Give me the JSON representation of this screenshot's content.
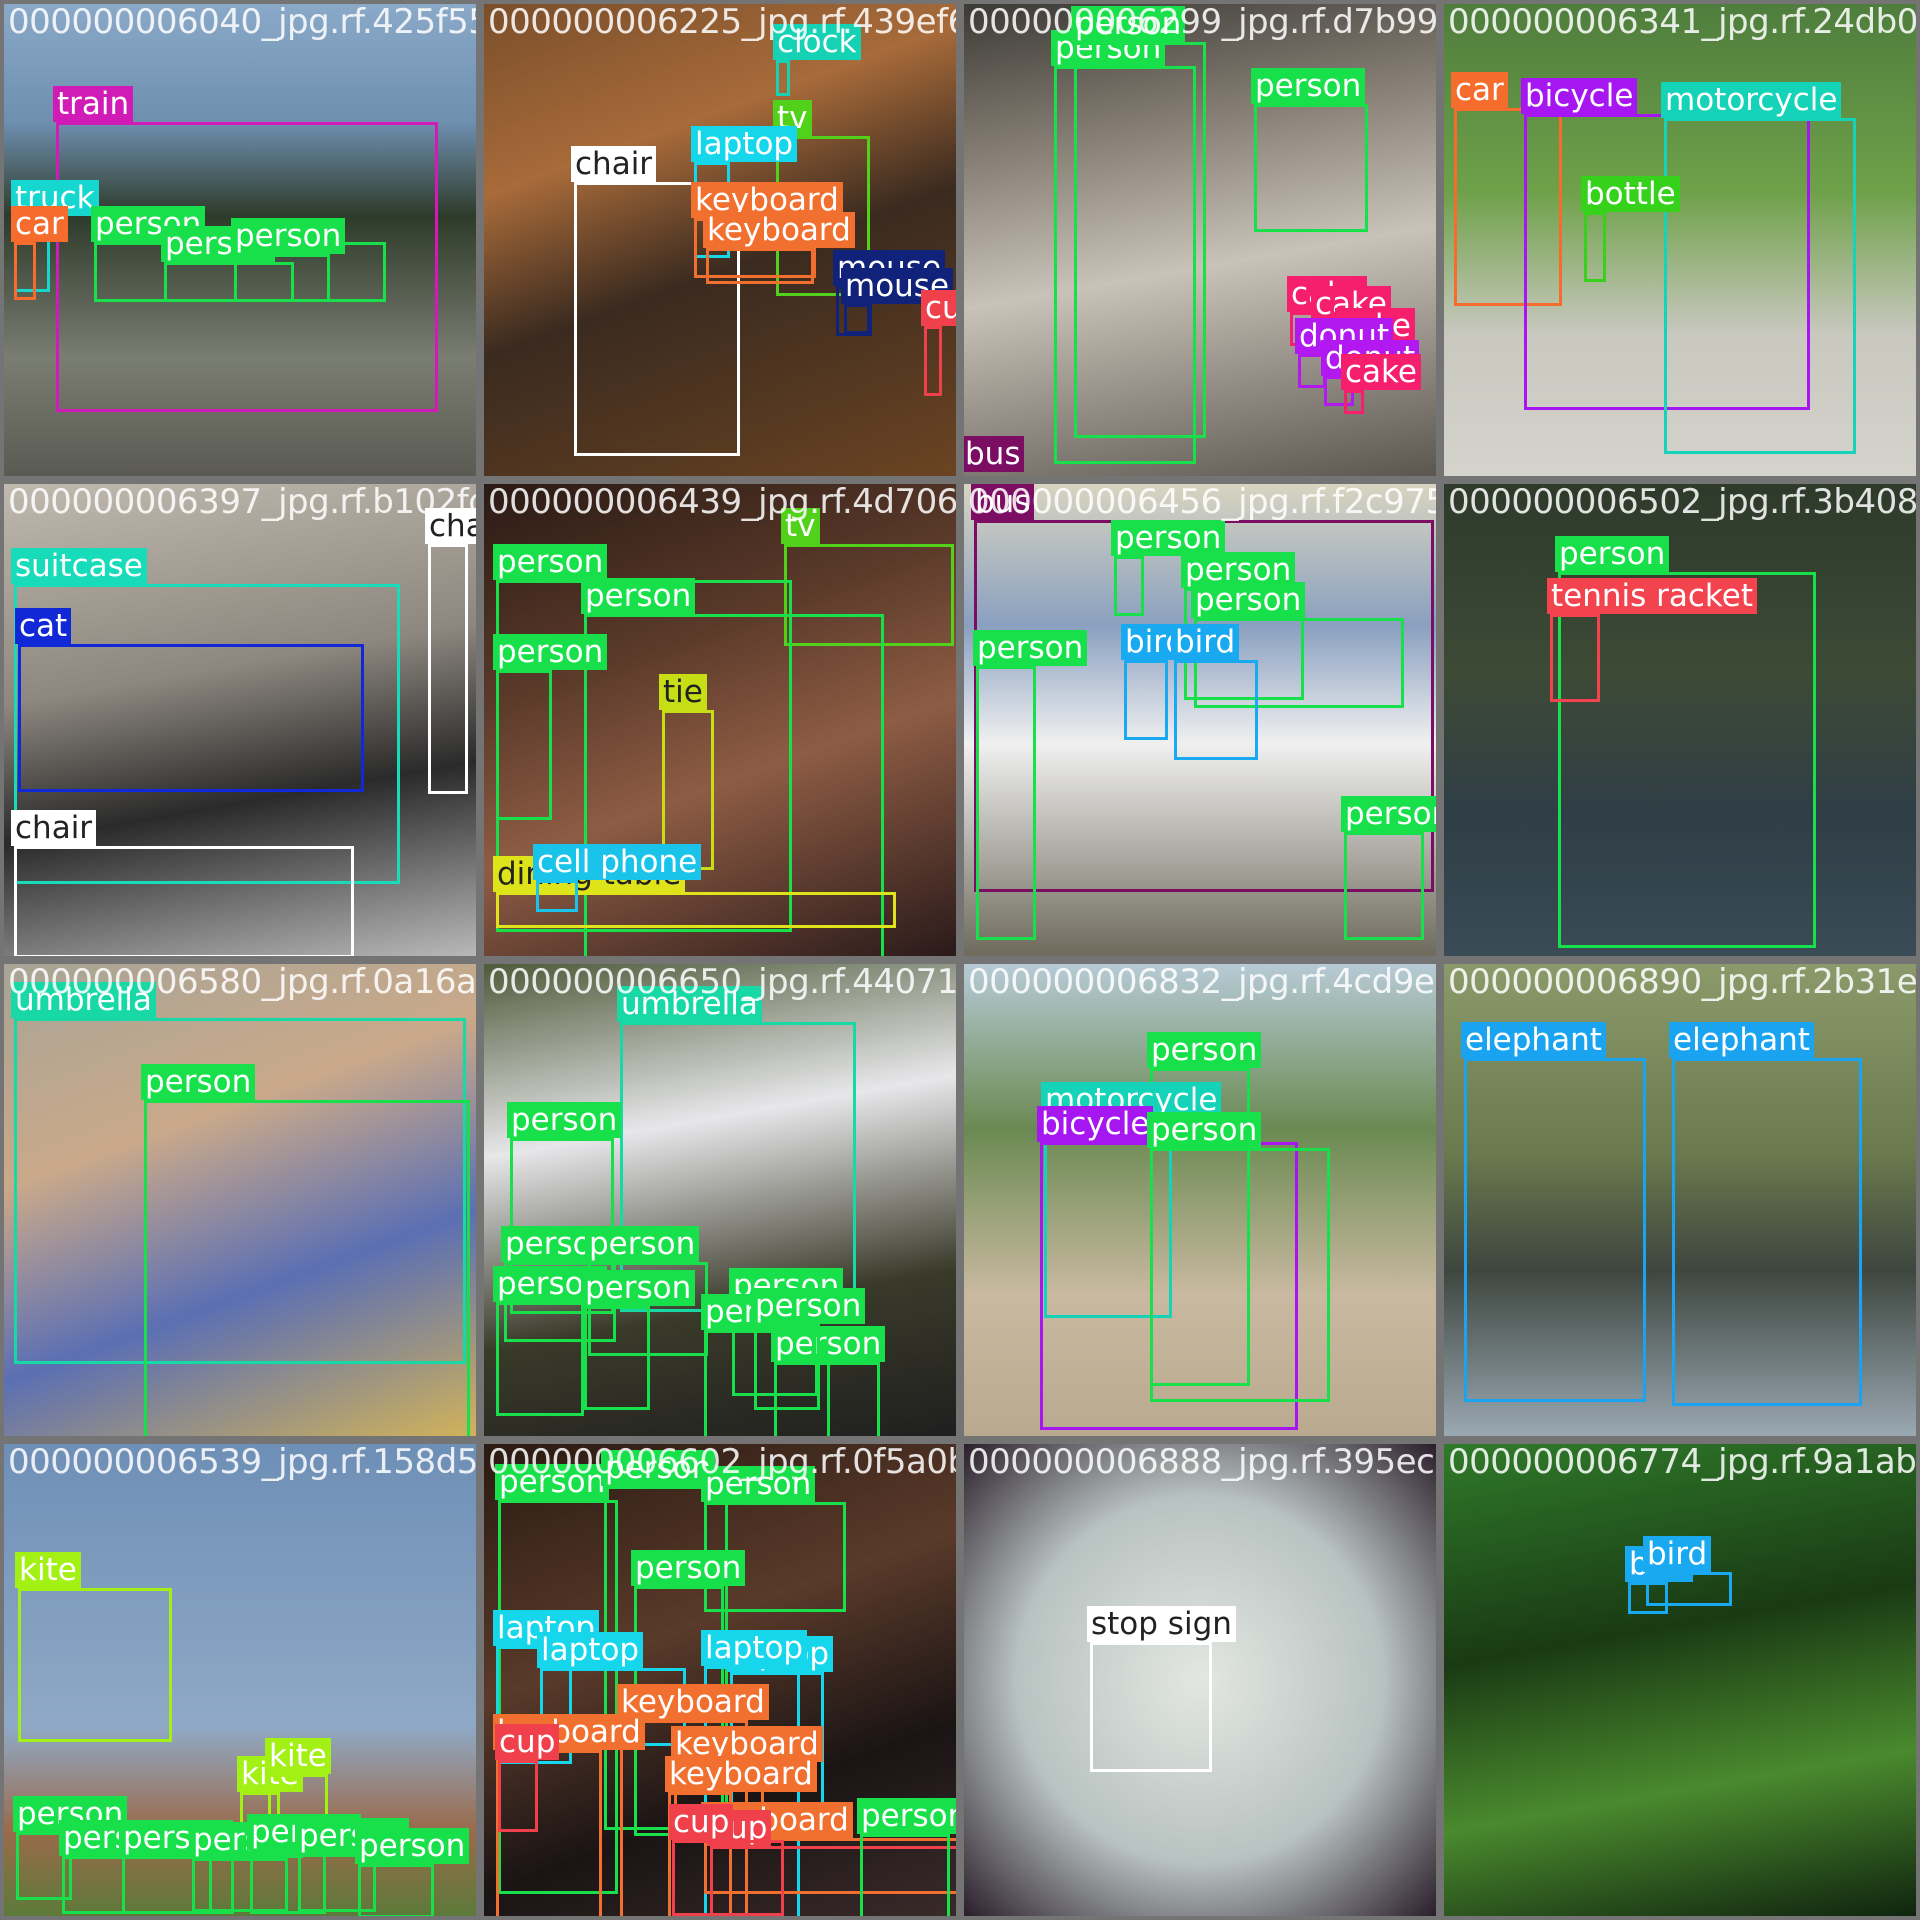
{
  "colors": {
    "person": "#18e04a",
    "train": "#d11bb7",
    "truck": "#16d6d0",
    "car": "#f56c2d",
    "clock": "#16d2b4",
    "tv": "#52d11b",
    "laptop": "#16d6ec",
    "chair": "#ffffff",
    "keyboard": "#f2702f",
    "mouse": "#10227a",
    "cup": "#f0404c",
    "cake": "#f51f6e",
    "donut": "#b218f0",
    "bicycle": "#a616f0",
    "motorcycle": "#14d3b8",
    "bottle": "#35d11b",
    "suitcase": "#18dbba",
    "cat": "#1128d6",
    "tie": "#c7dd16",
    "dining table": "#dfe41a",
    "cell phone": "#19c3e9",
    "bus": "#7b0e62",
    "bird": "#19a9f0",
    "tennis racket": "#f3434f",
    "umbrella": "#18d9a6",
    "elephant": "#1aa3f0",
    "kite": "#a2f014",
    "stop sign": "#ffffff"
  },
  "tiles": [
    {
      "file": "000000006040_jpg.rf.425f550f7b6d9f0c72e4b1a3c9d8e5f2",
      "dets": [
        {
          "cls": "train",
          "label": "train"
        },
        {
          "cls": "truck",
          "label": "truck"
        },
        {
          "cls": "car",
          "label": "car"
        },
        {
          "cls": "person",
          "label": "person"
        },
        {
          "cls": "person",
          "label": "person"
        },
        {
          "cls": "person",
          "label": "person"
        }
      ]
    },
    {
      "file": "000000006225_jpg.rf.439ef66d0932b1e8a7c4f5d2",
      "dets": [
        {
          "cls": "clock",
          "label": "clock"
        },
        {
          "cls": "tv",
          "label": "tv"
        },
        {
          "cls": "laptop",
          "label": "laptop"
        },
        {
          "cls": "chair",
          "label": "chair"
        },
        {
          "cls": "keyboard",
          "label": "keyboard"
        },
        {
          "cls": "keyboard",
          "label": "keyboard"
        },
        {
          "cls": "mouse",
          "label": "mouse"
        },
        {
          "cls": "mouse",
          "label": "mouse"
        },
        {
          "cls": "cup",
          "label": "cup"
        }
      ]
    },
    {
      "file": "000000006299_jpg.rf.d7b998a0c1e4f5b2d8a6",
      "dets": [
        {
          "cls": "person",
          "label": "person"
        },
        {
          "cls": "person",
          "label": "person"
        },
        {
          "cls": "person",
          "label": "person"
        },
        {
          "cls": "cake",
          "label": "cake"
        },
        {
          "cls": "cake",
          "label": "cake"
        },
        {
          "cls": "cake",
          "label": "cake"
        },
        {
          "cls": "donut",
          "label": "donut"
        },
        {
          "cls": "donut",
          "label": "donut"
        },
        {
          "cls": "cake",
          "label": "cake"
        },
        {
          "cls": "bus",
          "label": "bus"
        }
      ]
    },
    {
      "file": "000000006341_jpg.rf.24db0a7c1e9f3b5d6a8c",
      "dets": [
        {
          "cls": "car",
          "label": "car"
        },
        {
          "cls": "bicycle",
          "label": "bicycle"
        },
        {
          "cls": "motorcycle",
          "label": "motorcycle"
        },
        {
          "cls": "bottle",
          "label": "bottle"
        }
      ]
    },
    {
      "file": "000000006397_jpg.rf.b102fd9e0e04306763f",
      "dets": [
        {
          "cls": "suitcase",
          "label": "suitcase"
        },
        {
          "cls": "cat",
          "label": "cat"
        },
        {
          "cls": "chair",
          "label": "chair"
        },
        {
          "cls": "chair",
          "label": "chair"
        }
      ]
    },
    {
      "file": "000000006439_jpg.rf.4d706e0c0d1a2b3c4e5f",
      "dets": [
        {
          "cls": "tv",
          "label": "tv"
        },
        {
          "cls": "person",
          "label": "person"
        },
        {
          "cls": "person",
          "label": "person"
        },
        {
          "cls": "person",
          "label": "person"
        },
        {
          "cls": "tie",
          "label": "tie"
        },
        {
          "cls": "dining table",
          "label": "dining table"
        },
        {
          "cls": "cell phone",
          "label": "cell phone"
        }
      ]
    },
    {
      "file": "000000006456_jpg.rf.f2c9750d7e0c0d1a2b3c",
      "dets": [
        {
          "cls": "bus",
          "label": "bus"
        },
        {
          "cls": "person",
          "label": "person"
        },
        {
          "cls": "person",
          "label": "person"
        },
        {
          "cls": "person",
          "label": "person"
        },
        {
          "cls": "person",
          "label": "person"
        },
        {
          "cls": "bird",
          "label": "bird"
        },
        {
          "cls": "bird",
          "label": "bird"
        },
        {
          "cls": "person",
          "label": "person"
        }
      ]
    },
    {
      "file": "000000006502_jpg.rf.3b408f0c2d1e9a7b",
      "dets": [
        {
          "cls": "person",
          "label": "person"
        },
        {
          "cls": "tennis racket",
          "label": "tennis racket"
        }
      ]
    },
    {
      "file": "000000006580_jpg.rf.0a16a0b2c3d4e5f6",
      "dets": [
        {
          "cls": "umbrella",
          "label": "umbrella"
        },
        {
          "cls": "person",
          "label": "person"
        }
      ]
    },
    {
      "file": "000000006650_jpg.rf.44071900a1b2c3d4",
      "dets": [
        {
          "cls": "umbrella",
          "label": "umbrella"
        },
        {
          "cls": "person",
          "label": "person"
        },
        {
          "cls": "person",
          "label": "person"
        },
        {
          "cls": "person",
          "label": "person"
        },
        {
          "cls": "person",
          "label": "person"
        },
        {
          "cls": "person",
          "label": "person"
        },
        {
          "cls": "person",
          "label": "person"
        },
        {
          "cls": "person",
          "label": "person"
        },
        {
          "cls": "person",
          "label": "person"
        },
        {
          "cls": "person",
          "label": "person"
        }
      ]
    },
    {
      "file": "000000006832_jpg.rf.4cd9ee9a0b1c2d3e",
      "dets": [
        {
          "cls": "person",
          "label": "person"
        },
        {
          "cls": "motorcycle",
          "label": "motorcycle"
        },
        {
          "cls": "bicycle",
          "label": "bicycle"
        },
        {
          "cls": "person",
          "label": "person"
        }
      ]
    },
    {
      "file": "000000006890_jpg.rf.2b31e0a1b2c3d4e5",
      "dets": [
        {
          "cls": "elephant",
          "label": "elephant"
        },
        {
          "cls": "elephant",
          "label": "elephant"
        }
      ]
    },
    {
      "file": "000000006539_jpg.rf.158d52a0b1c2d3e4",
      "dets": [
        {
          "cls": "kite",
          "label": "kite"
        },
        {
          "cls": "kite",
          "label": "kite"
        },
        {
          "cls": "kite",
          "label": "kite"
        },
        {
          "cls": "person",
          "label": "person"
        },
        {
          "cls": "person",
          "label": "person"
        },
        {
          "cls": "person",
          "label": "person"
        },
        {
          "cls": "person",
          "label": "person"
        },
        {
          "cls": "person",
          "label": "person"
        },
        {
          "cls": "person",
          "label": "person"
        },
        {
          "cls": "person",
          "label": "person"
        }
      ]
    },
    {
      "file": "000000006602_jpg.rf.0f5a0b1c2d3e4f5a",
      "dets": [
        {
          "cls": "person",
          "label": "person"
        },
        {
          "cls": "person",
          "label": "person"
        },
        {
          "cls": "person",
          "label": "person"
        },
        {
          "cls": "person",
          "label": "person"
        },
        {
          "cls": "laptop",
          "label": "laptop"
        },
        {
          "cls": "laptop",
          "label": "laptop"
        },
        {
          "cls": "laptop",
          "label": "laptop"
        },
        {
          "cls": "laptop",
          "label": "laptop"
        },
        {
          "cls": "keyboard",
          "label": "keyboard"
        },
        {
          "cls": "keyboard",
          "label": "keyboard"
        },
        {
          "cls": "cup",
          "label": "cup"
        },
        {
          "cls": "keyboard",
          "label": "keyboard"
        },
        {
          "cls": "keyboard",
          "label": "keyboard"
        },
        {
          "cls": "keyboard",
          "label": "keyboard"
        },
        {
          "cls": "cup",
          "label": "cup"
        },
        {
          "cls": "cup",
          "label": "cup"
        },
        {
          "cls": "person",
          "label": "person"
        },
        {
          "cls": "cup",
          "label": "cup"
        }
      ]
    },
    {
      "file": "000000006888_jpg.rf.395ec0a1b2c3d4e5",
      "dets": [
        {
          "cls": "stop sign",
          "label": "stop sign"
        }
      ]
    },
    {
      "file": "000000006774_jpg.rf.9a1ab0c1d2e3f4a5",
      "dets": [
        {
          "cls": "bird",
          "label": "bird"
        },
        {
          "cls": "bird",
          "label": "bird"
        }
      ]
    }
  ]
}
